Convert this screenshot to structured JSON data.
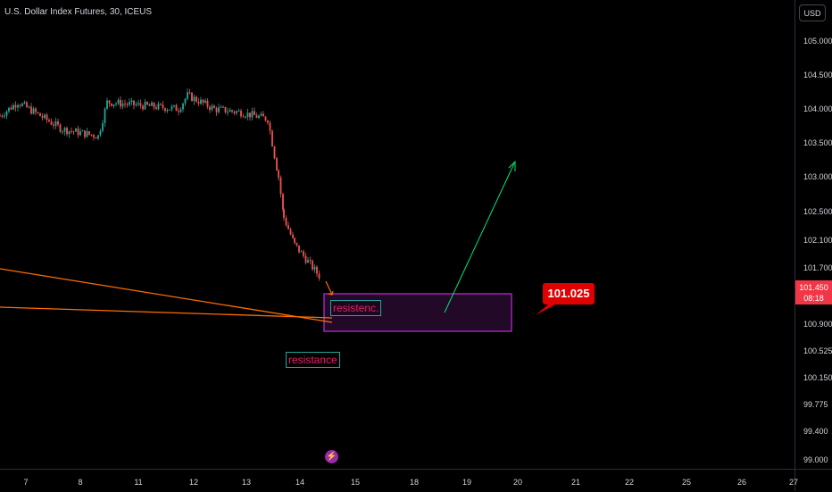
{
  "chart": {
    "title": "U.S. Dollar Index Futures, 30, ICEUS",
    "currency": "USD"
  },
  "price_axis": {
    "ticks": [
      "105.000",
      "104.500",
      "104.000",
      "103.500",
      "103.000",
      "102.500",
      "102.100",
      "101.700",
      "100.900",
      "100.525",
      "100.150",
      "99.775",
      "99.400",
      "99.000"
    ],
    "last_price": "101.450",
    "countdown": "08:18"
  },
  "time_axis": {
    "ticks": [
      "7",
      "8",
      "11",
      "12",
      "13",
      "14",
      "15",
      "18",
      "19",
      "20",
      "21",
      "22",
      "25",
      "26",
      "27"
    ]
  },
  "annotations": {
    "resistenc_label": "resistenc.",
    "resistance_label": "resistance",
    "price_callout": "101.025",
    "lightning_icon": "lightning-icon"
  },
  "colors": {
    "background": "#000000",
    "up_candle": "#26a69a",
    "down_candle": "#ef5350",
    "trendline": "#ff6d00",
    "zone_border": "#9c27b0",
    "arrow": "#00e676",
    "last_price_tag": "#f23645",
    "callout": "#e00000"
  },
  "chart_data": {
    "type": "candlestick",
    "symbol": "U.S. Dollar Index Futures",
    "interval": "30",
    "exchange": "ICEUS",
    "ylim": [
      99.0,
      105.2
    ],
    "x_categories": [
      "7",
      "8",
      "11",
      "12",
      "13",
      "14",
      "15",
      "18",
      "19",
      "20",
      "21",
      "22",
      "25",
      "26",
      "27"
    ],
    "close_path": [
      {
        "x": "7",
        "y": 103.9
      },
      {
        "x": "7",
        "y": 104.1
      },
      {
        "x": "8",
        "y": 103.7
      },
      {
        "x": "8",
        "y": 103.6
      },
      {
        "x": "11",
        "y": 104.1
      },
      {
        "x": "11",
        "y": 104.0
      },
      {
        "x": "12",
        "y": 104.2
      },
      {
        "x": "12",
        "y": 104.0
      },
      {
        "x": "13",
        "y": 103.95
      },
      {
        "x": "13",
        "y": 103.85
      },
      {
        "x": "13",
        "y": 103.0
      },
      {
        "x": "14",
        "y": 102.4
      },
      {
        "x": "14",
        "y": 102.0
      },
      {
        "x": "14",
        "y": 101.5
      }
    ],
    "last_price": 101.45,
    "resistance_zone": {
      "top": 101.2,
      "bottom": 100.65
    },
    "target_label": 101.025
  }
}
